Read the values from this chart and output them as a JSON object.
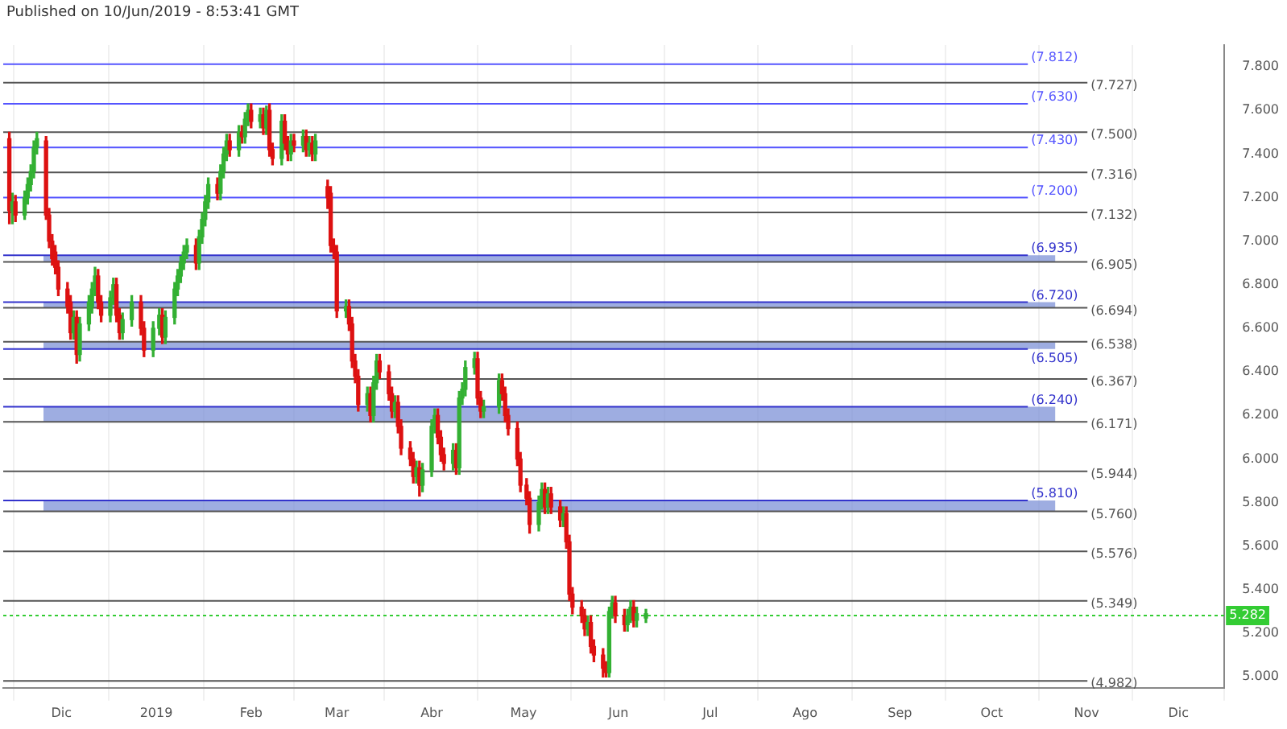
{
  "chart_data": {
    "type": "candlestick",
    "annotations": [
      "Published on 10/Jun/2019 - 8:53:41 GMT"
    ],
    "x": [
      "2018-11-14",
      "2018-11-15",
      "2018-11-16",
      "2018-11-19",
      "2018-11-20",
      "2018-11-21",
      "2018-11-22",
      "2018-11-23",
      "2018-11-26",
      "2018-11-27",
      "2018-11-28",
      "2018-11-29",
      "2018-11-30",
      "2018-12-03",
      "2018-12-04",
      "2018-12-05",
      "2018-12-06",
      "2018-12-07",
      "2018-12-10",
      "2018-12-11",
      "2018-12-12",
      "2018-12-13",
      "2018-12-14",
      "2018-12-17",
      "2018-12-18",
      "2018-12-19",
      "2018-12-20",
      "2018-12-21",
      "2018-12-24",
      "2018-12-27",
      "2018-12-28",
      "2018-12-31",
      "2019-01-02",
      "2019-01-03",
      "2019-01-04",
      "2019-01-07",
      "2019-01-08",
      "2019-01-09",
      "2019-01-10",
      "2019-01-11",
      "2019-01-14",
      "2019-01-15",
      "2019-01-16",
      "2019-01-17",
      "2019-01-18",
      "2019-01-21",
      "2019-01-22",
      "2019-01-23",
      "2019-01-24",
      "2019-01-25",
      "2019-01-28",
      "2019-01-29",
      "2019-01-30",
      "2019-01-31",
      "2019-02-01",
      "2019-02-04",
      "2019-02-05",
      "2019-02-06",
      "2019-02-07",
      "2019-02-08",
      "2019-02-11",
      "2019-02-12",
      "2019-02-13",
      "2019-02-14",
      "2019-02-15",
      "2019-02-18",
      "2019-02-19",
      "2019-02-20",
      "2019-02-21",
      "2019-02-22",
      "2019-02-26",
      "2019-02-27",
      "2019-02-28",
      "2019-03-01",
      "2019-03-04",
      "2019-03-05",
      "2019-03-06",
      "2019-03-07",
      "2019-03-08",
      "2019-03-11",
      "2019-03-12",
      "2019-03-13",
      "2019-03-14",
      "2019-03-15",
      "2019-03-18",
      "2019-03-19",
      "2019-03-20",
      "2019-03-21",
      "2019-03-22",
      "2019-03-25",
      "2019-03-26",
      "2019-03-27",
      "2019-03-28",
      "2019-03-29",
      "2019-04-01",
      "2019-04-02",
      "2019-04-03",
      "2019-04-04",
      "2019-04-05",
      "2019-04-08",
      "2019-04-09",
      "2019-04-10",
      "2019-04-11",
      "2019-04-12",
      "2019-04-15",
      "2019-04-16",
      "2019-04-17",
      "2019-04-18",
      "2019-04-23",
      "2019-04-24",
      "2019-04-25",
      "2019-04-26",
      "2019-04-29",
      "2019-04-30",
      "2019-05-02",
      "2019-05-03",
      "2019-05-06",
      "2019-05-07",
      "2019-05-08",
      "2019-05-09",
      "2019-05-10",
      "2019-05-13",
      "2019-05-14",
      "2019-05-15",
      "2019-05-16",
      "2019-05-17",
      "2019-05-20",
      "2019-05-21",
      "2019-05-22",
      "2019-05-23",
      "2019-05-24",
      "2019-05-27",
      "2019-05-28",
      "2019-05-29",
      "2019-05-30",
      "2019-05-31",
      "2019-06-03",
      "2019-06-04",
      "2019-06-05",
      "2019-06-06",
      "2019-06-07",
      "2019-06-10"
    ],
    "ohlc": [
      [
        7.47,
        7.5,
        7.08,
        7.14
      ],
      [
        7.14,
        7.22,
        7.08,
        7.18
      ],
      [
        7.18,
        7.21,
        7.09,
        7.12
      ],
      [
        7.12,
        7.23,
        7.1,
        7.2
      ],
      [
        7.2,
        7.29,
        7.17,
        7.26
      ],
      [
        7.26,
        7.35,
        7.23,
        7.32
      ],
      [
        7.32,
        7.46,
        7.29,
        7.43
      ],
      [
        7.43,
        7.5,
        7.4,
        7.47
      ],
      [
        7.46,
        7.48,
        7.1,
        7.12
      ],
      [
        7.12,
        7.15,
        6.97,
        7
      ],
      [
        7,
        7.03,
        6.89,
        6.92
      ],
      [
        6.95,
        6.98,
        6.85,
        6.88
      ],
      [
        6.88,
        6.91,
        6.75,
        6.78
      ],
      [
        6.78,
        6.81,
        6.67,
        6.7
      ],
      [
        6.72,
        6.75,
        6.55,
        6.58
      ],
      [
        6.58,
        6.68,
        6.55,
        6.65
      ],
      [
        6.65,
        6.68,
        6.44,
        6.48
      ],
      [
        6.48,
        6.65,
        6.45,
        6.62
      ],
      [
        6.62,
        6.75,
        6.59,
        6.72
      ],
      [
        6.7,
        6.81,
        6.67,
        6.78
      ],
      [
        6.78,
        6.88,
        6.75,
        6.84
      ],
      [
        6.84,
        6.87,
        6.69,
        6.72
      ],
      [
        6.72,
        6.75,
        6.63,
        6.66
      ],
      [
        6.66,
        6.77,
        6.63,
        6.74
      ],
      [
        6.74,
        6.83,
        6.71,
        6.8
      ],
      [
        6.8,
        6.83,
        6.63,
        6.66
      ],
      [
        6.66,
        6.69,
        6.55,
        6.58
      ],
      [
        6.58,
        6.67,
        6.55,
        6.64
      ],
      [
        6.64,
        6.75,
        6.61,
        6.72
      ],
      [
        6.72,
        6.75,
        6.57,
        6.6
      ],
      [
        6.6,
        6.63,
        6.47,
        6.5
      ],
      [
        6.5,
        6.63,
        6.47,
        6.6
      ],
      [
        6.6,
        6.69,
        6.57,
        6.66
      ],
      [
        6.66,
        6.69,
        6.53,
        6.56
      ],
      [
        6.56,
        6.68,
        6.53,
        6.65
      ],
      [
        6.65,
        6.81,
        6.62,
        6.78
      ],
      [
        6.78,
        6.87,
        6.75,
        6.84
      ],
      [
        6.84,
        6.93,
        6.81,
        6.9
      ],
      [
        6.9,
        6.98,
        6.87,
        6.95
      ],
      [
        6.95,
        7.01,
        6.92,
        6.98
      ],
      [
        6.98,
        7.01,
        6.87,
        6.9
      ],
      [
        6.9,
        7.05,
        6.87,
        7.02
      ],
      [
        7.02,
        7.13,
        6.99,
        7.1
      ],
      [
        7.1,
        7.21,
        7.07,
        7.18
      ],
      [
        7.18,
        7.29,
        7.15,
        7.26
      ],
      [
        7.26,
        7.29,
        7.19,
        7.22
      ],
      [
        7.22,
        7.35,
        7.19,
        7.32
      ],
      [
        7.32,
        7.43,
        7.29,
        7.4
      ],
      [
        7.4,
        7.49,
        7.37,
        7.46
      ],
      [
        7.46,
        7.49,
        7.39,
        7.42
      ],
      [
        7.42,
        7.53,
        7.39,
        7.5
      ],
      [
        7.5,
        7.53,
        7.45,
        7.48
      ],
      [
        7.48,
        7.59,
        7.45,
        7.56
      ],
      [
        7.56,
        7.63,
        7.53,
        7.6
      ],
      [
        7.6,
        7.63,
        7.52,
        7.55
      ],
      [
        7.55,
        7.61,
        7.52,
        7.58
      ],
      [
        7.58,
        7.61,
        7.49,
        7.52
      ],
      [
        7.52,
        7.62,
        7.49,
        7.6
      ],
      [
        7.6,
        7.63,
        7.39,
        7.42
      ],
      [
        7.42,
        7.45,
        7.35,
        7.38
      ],
      [
        7.38,
        7.58,
        7.35,
        7.55
      ],
      [
        7.55,
        7.58,
        7.42,
        7.45
      ],
      [
        7.45,
        7.48,
        7.37,
        7.4
      ],
      [
        7.4,
        7.49,
        7.37,
        7.46
      ],
      [
        7.46,
        7.49,
        7.41,
        7.44
      ],
      [
        7.44,
        7.51,
        7.41,
        7.48
      ],
      [
        7.48,
        7.51,
        7.39,
        7.42
      ],
      [
        7.42,
        7.48,
        7.39,
        7.45
      ],
      [
        7.45,
        7.48,
        7.37,
        7.4
      ],
      [
        7.4,
        7.49,
        7.37,
        7.46
      ],
      [
        7.25,
        7.28,
        7.15,
        7.2
      ],
      [
        7.22,
        7.25,
        6.95,
        6.98
      ],
      [
        6.98,
        7.01,
        6.92,
        6.95
      ],
      [
        6.95,
        6.98,
        6.65,
        6.68
      ],
      [
        6.68,
        6.73,
        6.65,
        6.7
      ],
      [
        6.7,
        6.73,
        6.59,
        6.62
      ],
      [
        6.62,
        6.65,
        6.42,
        6.45
      ],
      [
        6.45,
        6.48,
        6.35,
        6.38
      ],
      [
        6.38,
        6.41,
        6.22,
        6.25
      ],
      [
        6.25,
        6.33,
        6.22,
        6.3
      ],
      [
        6.3,
        6.33,
        6.17,
        6.2
      ],
      [
        6.2,
        6.38,
        6.17,
        6.35
      ],
      [
        6.35,
        6.48,
        6.32,
        6.45
      ],
      [
        6.45,
        6.48,
        6.37,
        6.4
      ],
      [
        6.4,
        6.43,
        6.27,
        6.3
      ],
      [
        6.3,
        6.33,
        6.19,
        6.22
      ],
      [
        6.22,
        6.29,
        6.19,
        6.26
      ],
      [
        6.26,
        6.29,
        6.12,
        6.15
      ],
      [
        6.15,
        6.18,
        6.02,
        6.05
      ],
      [
        6.05,
        6.08,
        5.97,
        6
      ],
      [
        6,
        6.03,
        5.89,
        5.92
      ],
      [
        5.92,
        5.99,
        5.89,
        5.96
      ],
      [
        5.96,
        5.99,
        5.83,
        5.88
      ],
      [
        5.88,
        5.98,
        5.85,
        5.95
      ],
      [
        5.95,
        6.18,
        5.92,
        6.15
      ],
      [
        6.15,
        6.23,
        6.12,
        6.2
      ],
      [
        6.2,
        6.23,
        6.07,
        6.1
      ],
      [
        6.1,
        6.13,
        5.99,
        6.02
      ],
      [
        6.02,
        6.05,
        5.95,
        5.98
      ],
      [
        5.98,
        6.07,
        5.95,
        6.04
      ],
      [
        6.04,
        6.07,
        5.93,
        5.96
      ],
      [
        5.96,
        6.31,
        5.93,
        6.28
      ],
      [
        6.28,
        6.35,
        6.25,
        6.32
      ],
      [
        6.32,
        6.45,
        6.29,
        6.42
      ],
      [
        6.42,
        6.49,
        6.39,
        6.46
      ],
      [
        6.46,
        6.49,
        6.25,
        6.28
      ],
      [
        6.28,
        6.31,
        6.19,
        6.22
      ],
      [
        6.22,
        6.27,
        6.19,
        6.24
      ],
      [
        6.24,
        6.39,
        6.21,
        6.36
      ],
      [
        6.36,
        6.39,
        6.27,
        6.3
      ],
      [
        6.3,
        6.33,
        6.17,
        6.2
      ],
      [
        6.2,
        6.23,
        6.11,
        6.14
      ],
      [
        6.14,
        6.17,
        5.97,
        6
      ],
      [
        6,
        6.03,
        5.85,
        5.88
      ],
      [
        5.88,
        5.91,
        5.79,
        5.82
      ],
      [
        5.82,
        5.85,
        5.66,
        5.7
      ],
      [
        5.7,
        5.83,
        5.67,
        5.8
      ],
      [
        5.8,
        5.89,
        5.77,
        5.86
      ],
      [
        5.86,
        5.89,
        5.75,
        5.78
      ],
      [
        5.78,
        5.87,
        5.75,
        5.84
      ],
      [
        5.84,
        5.87,
        5.75,
        5.78
      ],
      [
        5.78,
        5.81,
        5.69,
        5.72
      ],
      [
        5.72,
        5.78,
        5.69,
        5.75
      ],
      [
        5.75,
        5.78,
        5.59,
        5.62
      ],
      [
        5.62,
        5.65,
        5.35,
        5.38
      ],
      [
        5.38,
        5.41,
        5.29,
        5.32
      ],
      [
        5.32,
        5.35,
        5.25,
        5.28
      ],
      [
        5.28,
        5.31,
        5.19,
        5.22
      ],
      [
        5.22,
        5.28,
        5.19,
        5.25
      ],
      [
        5.25,
        5.28,
        5.11,
        5.14
      ],
      [
        5.14,
        5.17,
        5.07,
        5.1
      ],
      [
        5.1,
        5.13,
        5,
        5.04
      ],
      [
        5.04,
        5.07,
        5,
        5.02
      ],
      [
        5.02,
        5.32,
        5,
        5.3
      ],
      [
        5.3,
        5.37,
        5.27,
        5.34
      ],
      [
        5.34,
        5.37,
        5.25,
        5.28
      ],
      [
        5.28,
        5.31,
        5.21,
        5.24
      ],
      [
        5.24,
        5.31,
        5.21,
        5.28
      ],
      [
        5.28,
        5.35,
        5.25,
        5.32
      ],
      [
        5.32,
        5.35,
        5.23,
        5.26
      ],
      [
        5.26,
        5.32,
        5.23,
        5.29
      ],
      [
        5.27,
        5.31,
        5.25,
        5.29
      ]
    ],
    "xlim": [
      "2018-11-12",
      "2019-12-16"
    ],
    "xticks": [
      {
        "value": "2018-12-01",
        "label": "Dic"
      },
      {
        "value": "2019-01-01",
        "label": "2019"
      },
      {
        "value": "2019-02-01",
        "label": "Feb"
      },
      {
        "value": "2019-03-01",
        "label": "Mar"
      },
      {
        "value": "2019-04-01",
        "label": "Abr"
      },
      {
        "value": "2019-05-01",
        "label": "May"
      },
      {
        "value": "2019-06-01",
        "label": "Jun"
      },
      {
        "value": "2019-07-01",
        "label": "Jul"
      },
      {
        "value": "2019-08-01",
        "label": "Ago"
      },
      {
        "value": "2019-09-01",
        "label": "Sep"
      },
      {
        "value": "2019-10-01",
        "label": "Oct"
      },
      {
        "value": "2019-11-01",
        "label": "Nov"
      },
      {
        "value": "2019-12-01",
        "label": "Dic"
      }
    ],
    "ylim": [
      4.95,
      7.9
    ],
    "yticks": [
      {
        "value": 5,
        "label": "5.000"
      },
      {
        "value": 5.2,
        "label": "5.200"
      },
      {
        "value": 5.4,
        "label": "5.400"
      },
      {
        "value": 5.6,
        "label": "5.600"
      },
      {
        "value": 5.8,
        "label": "5.800"
      },
      {
        "value": 6,
        "label": "6.000"
      },
      {
        "value": 6.2,
        "label": "6.200"
      },
      {
        "value": 6.4,
        "label": "6.400"
      },
      {
        "value": 6.6,
        "label": "6.600"
      },
      {
        "value": 6.8,
        "label": "6.800"
      },
      {
        "value": 7,
        "label": "7.000"
      },
      {
        "value": 7.2,
        "label": "7.200"
      },
      {
        "value": 7.4,
        "label": "7.400"
      },
      {
        "value": 7.6,
        "label": "7.600"
      },
      {
        "value": 7.8,
        "label": "7.800"
      }
    ],
    "grid": "x",
    "legend": false,
    "bands": [
      {
        "axis": "y",
        "from": 6.905,
        "to": 6.935,
        "color": "#7b8fd6"
      },
      {
        "axis": "y",
        "from": 6.694,
        "to": 6.72,
        "color": "#7b8fd6"
      },
      {
        "axis": "y",
        "from": 6.505,
        "to": 6.538,
        "color": "#7b8fd6"
      },
      {
        "axis": "y",
        "from": 6.171,
        "to": 6.24,
        "color": "#7b8fd6"
      },
      {
        "axis": "y",
        "from": 5.76,
        "to": 5.81,
        "color": "#7b8fd6"
      }
    ],
    "ref_lines": [
      {
        "axis": "y",
        "value": 7.812,
        "label": "(7.812)",
        "color": "#5555ff"
      },
      {
        "axis": "y",
        "value": 7.727,
        "label": "(7.727)",
        "color": "#555555"
      },
      {
        "axis": "y",
        "value": 7.63,
        "label": "(7.630)",
        "color": "#5555ff"
      },
      {
        "axis": "y",
        "value": 7.5,
        "label": "(7.500)",
        "color": "#555555"
      },
      {
        "axis": "y",
        "value": 7.43,
        "label": "(7.430)",
        "color": "#5555ff"
      },
      {
        "axis": "y",
        "value": 7.316,
        "label": "(7.316)",
        "color": "#555555"
      },
      {
        "axis": "y",
        "value": 7.2,
        "label": "(7.200)",
        "color": "#5555ff"
      },
      {
        "axis": "y",
        "value": 7.132,
        "label": "(7.132)",
        "color": "#555555"
      },
      {
        "axis": "y",
        "value": 6.935,
        "label": "(6.935)",
        "color": "#3333cc"
      },
      {
        "axis": "y",
        "value": 6.905,
        "label": "(6.905)",
        "color": "#555555"
      },
      {
        "axis": "y",
        "value": 6.72,
        "label": "(6.720)",
        "color": "#3333cc"
      },
      {
        "axis": "y",
        "value": 6.694,
        "label": "(6.694)",
        "color": "#555555"
      },
      {
        "axis": "y",
        "value": 6.538,
        "label": "(6.538)",
        "color": "#555555"
      },
      {
        "axis": "y",
        "value": 6.505,
        "label": "(6.505)",
        "color": "#3333cc"
      },
      {
        "axis": "y",
        "value": 6.367,
        "label": "(6.367)",
        "color": "#555555"
      },
      {
        "axis": "y",
        "value": 6.24,
        "label": "(6.240)",
        "color": "#3333cc"
      },
      {
        "axis": "y",
        "value": 6.171,
        "label": "(6.171)",
        "color": "#555555"
      },
      {
        "axis": "y",
        "value": 5.944,
        "label": "(5.944)",
        "color": "#555555"
      },
      {
        "axis": "y",
        "value": 5.81,
        "label": "(5.810)",
        "color": "#3333cc"
      },
      {
        "axis": "y",
        "value": 5.76,
        "label": "(5.760)",
        "color": "#555555"
      },
      {
        "axis": "y",
        "value": 5.576,
        "label": "(5.576)",
        "color": "#555555"
      },
      {
        "axis": "y",
        "value": 5.349,
        "label": "(5.349)",
        "color": "#555555"
      },
      {
        "axis": "y",
        "value": 5.282,
        "label": "5.282",
        "color": "#33cc33",
        "line_style": "dotted"
      },
      {
        "axis": "y",
        "value": 4.982,
        "label": "(4.982)",
        "color": "#555555"
      }
    ]
  }
}
